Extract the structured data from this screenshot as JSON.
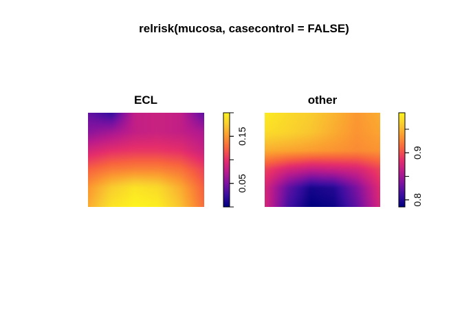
{
  "title": "relrisk(mucosa, casecontrol = FALSE)",
  "palette": [
    "#00007f",
    "#3a0ea0",
    "#7d12a0",
    "#b91b8c",
    "#e52e6b",
    "#f8633f",
    "#fb9831",
    "#f9cb2f",
    "#fdf41f"
  ],
  "chart_data": [
    {
      "type": "heatmap",
      "title": "ECL",
      "scale_ticks": [
        "0.05",
        "0.15"
      ],
      "scale_tick_values": [
        0.05,
        0.15
      ],
      "zlim": [
        0.0,
        0.2
      ],
      "grid": false,
      "legend_placement": "right",
      "surface": [
        [
          0.2,
          0.12,
          0.4,
          0.42,
          0.4,
          0.2
        ],
        [
          0.28,
          0.33,
          0.4,
          0.42,
          0.4,
          0.35
        ],
        [
          0.45,
          0.5,
          0.52,
          0.52,
          0.5,
          0.42
        ],
        [
          0.62,
          0.68,
          0.7,
          0.7,
          0.66,
          0.55
        ],
        [
          0.75,
          0.88,
          0.95,
          0.92,
          0.8,
          0.62
        ],
        [
          0.8,
          0.95,
          1.0,
          0.98,
          0.85,
          0.65
        ]
      ]
    },
    {
      "type": "heatmap",
      "title": "other",
      "scale_ticks": [
        "0.8",
        "0.9"
      ],
      "scale_tick_values": [
        0.8,
        0.9
      ],
      "zlim": [
        0.785,
        0.985
      ],
      "grid": false,
      "legend_placement": "right",
      "surface": [
        [
          0.97,
          0.92,
          0.88,
          0.82,
          0.75,
          0.8
        ],
        [
          0.93,
          0.9,
          0.86,
          0.8,
          0.74,
          0.78
        ],
        [
          0.8,
          0.78,
          0.76,
          0.74,
          0.72,
          0.74
        ],
        [
          0.55,
          0.45,
          0.4,
          0.42,
          0.45,
          0.55
        ],
        [
          0.45,
          0.2,
          0.05,
          0.08,
          0.25,
          0.48
        ],
        [
          0.45,
          0.15,
          0.0,
          0.03,
          0.2,
          0.45
        ]
      ]
    }
  ]
}
